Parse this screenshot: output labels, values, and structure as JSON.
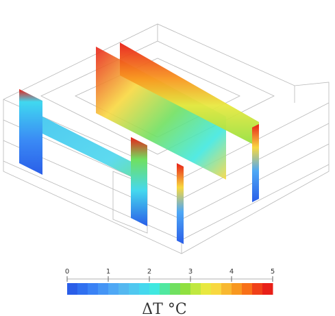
{
  "colorbar": {
    "label": "ΔT °C",
    "min": 0,
    "max": 5,
    "ticks": [
      0,
      1,
      2,
      3,
      4,
      5
    ],
    "colors": [
      "#2a5ee8",
      "#3070f0",
      "#3a82f5",
      "#4595f5",
      "#4fa8f5",
      "#55b8f0",
      "#50c8f0",
      "#45d8ee",
      "#40e8e0",
      "#50e8a0",
      "#70e060",
      "#90e040",
      "#c0e840",
      "#e8e840",
      "#f8d840",
      "#f8b830",
      "#f89820",
      "#f87018",
      "#f04018",
      "#e82018"
    ]
  }
}
